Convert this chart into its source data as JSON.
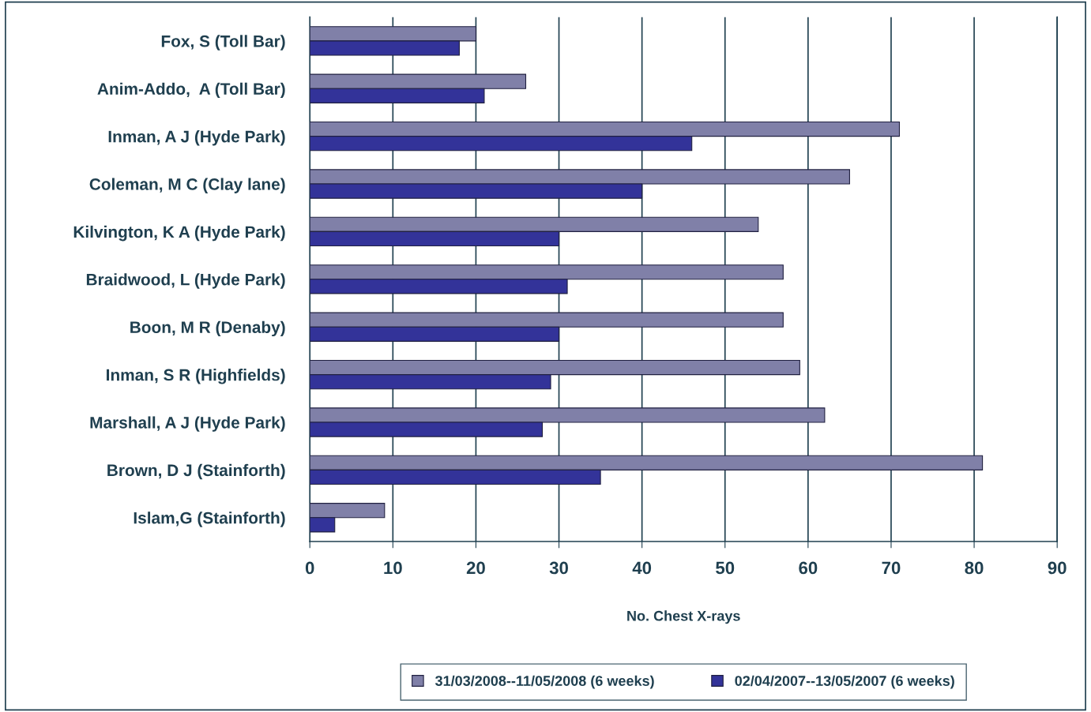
{
  "chart_data": {
    "type": "bar",
    "orientation": "horizontal",
    "xlabel": "No. Chest X-rays",
    "categories": [
      "Fox, S (Toll Bar)",
      "Anim-Addo,  A (Toll Bar)",
      "Inman, A J (Hyde Park)",
      "Coleman, M C (Clay lane)",
      "Kilvington, K A (Hyde Park)",
      "Braidwood, L (Hyde Park)",
      "Boon, M R (Denaby)",
      "Inman, S R (Highfields)",
      "Marshall, A J (Hyde Park)",
      "Brown, D J (Stainforth)",
      "Islam,G (Stainforth)"
    ],
    "series": [
      {
        "name": "31/03/2008--11/05/2008 (6 weeks)",
        "color": "#8080a8",
        "values": [
          20,
          26,
          71,
          65,
          54,
          57,
          57,
          59,
          62,
          81,
          9
        ]
      },
      {
        "name": "02/04/2007--13/05/2007 (6 weeks)",
        "color": "#333399",
        "values": [
          18,
          21,
          46,
          40,
          30,
          31,
          30,
          29,
          28,
          35,
          3
        ]
      }
    ],
    "xlim": [
      0,
      90
    ],
    "xticks": [
      0,
      10,
      20,
      30,
      40,
      50,
      60,
      70,
      80,
      90
    ],
    "grid": "x",
    "legend": "bottom"
  }
}
